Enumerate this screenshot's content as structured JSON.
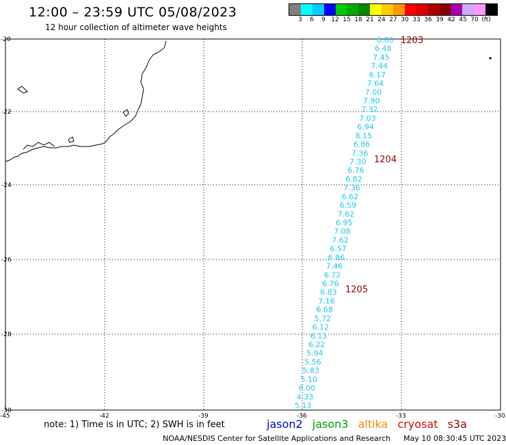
{
  "header": {
    "title": "12:00 – 23:59 UTC 05/08/2023",
    "subtitle": "12 hour collection of altimeter wave heights"
  },
  "legend": {
    "colors": [
      "#808080",
      "#00ffff",
      "#00ccff",
      "#0000ff",
      "#00cc00",
      "#00aa00",
      "#008800",
      "#ffff00",
      "#ffcc00",
      "#ff9900",
      "#ff0000",
      "#dd0000",
      "#aa0000",
      "#880000",
      "#aa00aa",
      "#ccaaff",
      "#ff99ff",
      "#000000"
    ],
    "labels": [
      "3",
      "6",
      "9",
      "12",
      "15",
      "18",
      "21",
      "24",
      "27",
      "30",
      "33",
      "36",
      "39",
      "42",
      "45",
      "70",
      "(ft)"
    ]
  },
  "axes": {
    "lat_labels": [
      "-20",
      "-22",
      "-24",
      "-26",
      "-28",
      "-30"
    ],
    "lon_labels": [
      "-45",
      "-42",
      "-39",
      "-36",
      "-33",
      "-30"
    ]
  },
  "pass_labels": [
    "1203",
    "1204",
    "1205"
  ],
  "swh_values": [
    "6.00",
    "6.48",
    "7.45",
    "7.44",
    "6.17",
    "7.64",
    "7.00",
    "7.90",
    "7.32",
    "7.03",
    "6.94",
    "8.15",
    "6.86",
    "7.36",
    "7.30",
    "6.76",
    "6.82",
    "7.36",
    "6.62",
    "6.59",
    "7.62",
    "6.95",
    "7.08",
    "7.62",
    "6.57",
    "6.86",
    "7.46",
    "6.72",
    "6.76",
    "6.83",
    "7.16",
    "6.68",
    "5.72",
    "6.12",
    "6.13",
    "6.22",
    "5.94",
    "5.56",
    "5.83",
    "5.10",
    "6.00",
    "4.33",
    "5.13"
  ],
  "swh_color": "#1ec8ee",
  "footer": {
    "note": "note: 1) Time is in UTC; 2) SWH is in feet",
    "satellites": [
      {
        "name": "jason2",
        "color": "#0000cc"
      },
      {
        "name": "jason3",
        "color": "#009900"
      },
      {
        "name": "altika",
        "color": "#ff8800"
      },
      {
        "name": "cryosat",
        "color": "#dd0000"
      },
      {
        "name": "s3a",
        "color": "#8b0000"
      }
    ],
    "credit": "NOAA/NESDIS Center for Satellite Applications and Research",
    "timestamp": "May 10 08:30:45 UTC 2023"
  }
}
